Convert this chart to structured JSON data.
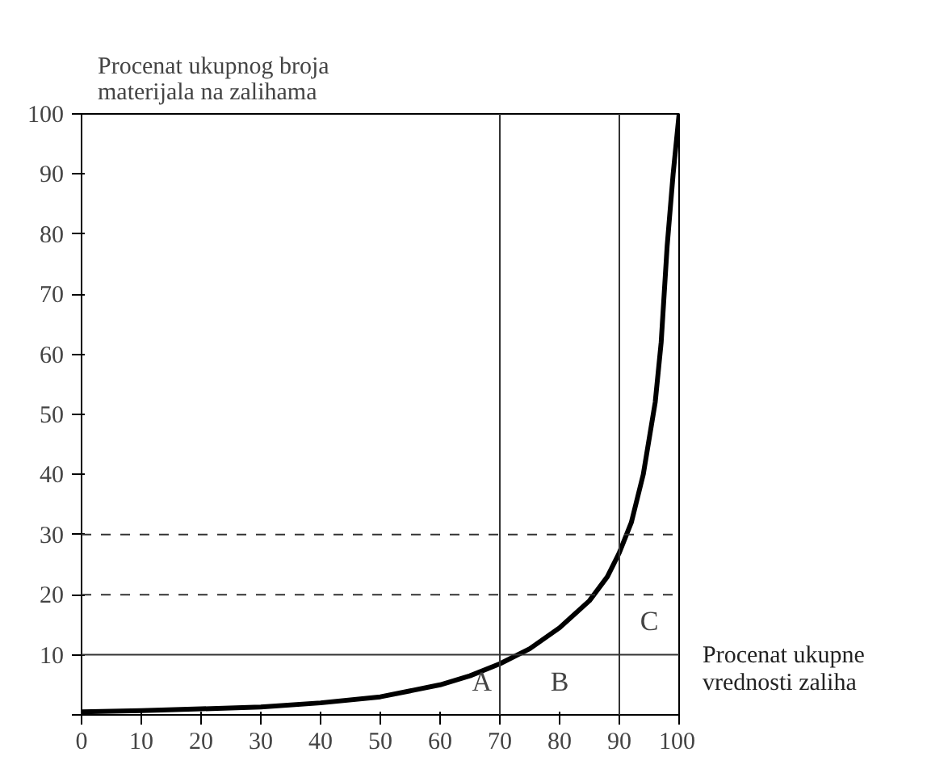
{
  "chart_data": {
    "type": "line",
    "title": "Procenat ukupnog broja\nmaterijala na zalihama",
    "xlabel": "Procenat ukupne\nvrednosti zaliha",
    "x": [
      0,
      10,
      20,
      30,
      40,
      50,
      60,
      65,
      70,
      75,
      80,
      85,
      88,
      90,
      92,
      94,
      96,
      97,
      98,
      99,
      100
    ],
    "series": [
      {
        "color": "#000000",
        "values": [
          0.5,
          0.7,
          1,
          1.3,
          2,
          3,
          5,
          6.5,
          8.5,
          11,
          14.5,
          19,
          23,
          27,
          32,
          40,
          52,
          62,
          78,
          90,
          100
        ]
      }
    ],
    "xlim": [
      0,
      100
    ],
    "ylim": [
      0,
      100
    ],
    "xticks": [
      0,
      10,
      20,
      30,
      40,
      50,
      60,
      70,
      80,
      90,
      100
    ],
    "yticks": [
      {
        "value": 0,
        "label": null
      },
      10,
      20,
      30,
      40,
      50,
      60,
      70,
      80,
      90,
      100
    ],
    "ref_lines": [
      {
        "axis": "x",
        "value": 70,
        "line_style": "solid"
      },
      {
        "axis": "x",
        "value": 90,
        "line_style": "solid"
      },
      {
        "axis": "y",
        "value": 10,
        "line_style": "solid"
      },
      {
        "axis": "y",
        "value": 20,
        "line_style": "dashed"
      },
      {
        "axis": "y",
        "value": 30,
        "line_style": "dashed"
      }
    ],
    "annotations": [
      "A",
      "B",
      "C"
    ],
    "grid": false,
    "line_style": "solid",
    "marker": "none"
  }
}
